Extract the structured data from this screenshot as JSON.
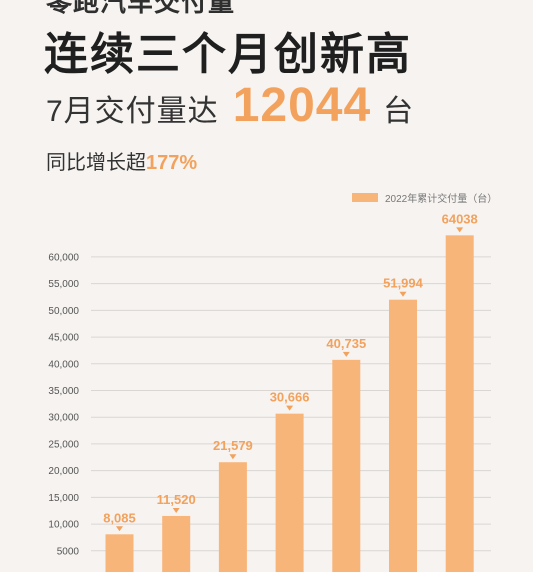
{
  "header": {
    "top_partial": "零跑汽车交付量",
    "headline": "连续三个月创新高",
    "sub_label": "7月交付量达",
    "sub_number": "12044",
    "sub_unit": "台",
    "growth_label": "同比增长超",
    "growth_value": "177%"
  },
  "colors": {
    "bar": "#f8b57a",
    "accent": "#f2a25c",
    "grid": "#d9d6d4"
  },
  "chart_data": {
    "type": "bar",
    "legend": "2022年累计交付量（台）",
    "legend_position": "top-right",
    "grid": true,
    "ylim": [
      0,
      65000
    ],
    "y_ticks": [
      5000,
      10000,
      15000,
      20000,
      25000,
      30000,
      35000,
      40000,
      45000,
      50000,
      55000,
      60000
    ],
    "y_tick_labels": [
      "5000",
      "10,000",
      "15,000",
      "20,000",
      "25,000",
      "30,000",
      "35,000",
      "40,000",
      "45,000",
      "50,000",
      "55,000",
      "60,000"
    ],
    "values": [
      8085,
      11520,
      21579,
      30666,
      40735,
      51994,
      64038
    ],
    "value_labels": [
      "8,085",
      "11,520",
      "21,579",
      "30,666",
      "40,735",
      "51,994",
      "64038"
    ]
  }
}
